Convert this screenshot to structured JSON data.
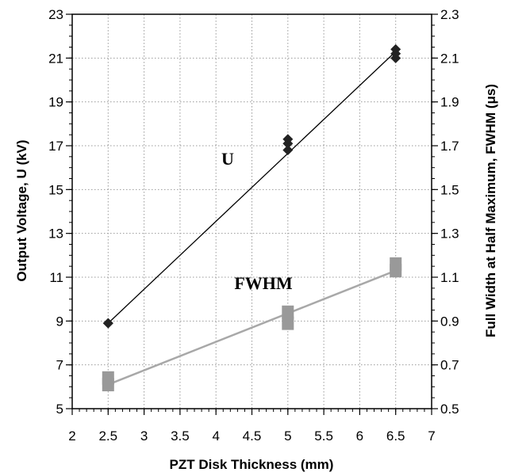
{
  "chart_data": {
    "type": "scatter",
    "xlabel": "PZT Disk Thickness (mm)",
    "ylabel": "Output Voltage, U (kV)",
    "y2label": "Full Width at Half Maximum, FWHM  (μs)",
    "xlim": [
      2,
      7
    ],
    "ylim": [
      5,
      23
    ],
    "y2lim": [
      0.5,
      2.3
    ],
    "x_ticks": [
      "2",
      "2.5",
      "3",
      "3.5",
      "4",
      "4.5",
      "5",
      "5.5",
      "6",
      "6.5",
      "7"
    ],
    "y_ticks": [
      "5",
      "7",
      "9",
      "11",
      "13",
      "15",
      "17",
      "19",
      "21",
      "23"
    ],
    "y2_ticks": [
      "0.5",
      "0.7",
      "0.9",
      "1.1",
      "1.3",
      "1.5",
      "1.7",
      "1.9",
      "2.1",
      "2.3"
    ],
    "grid": true,
    "series": [
      {
        "name": "U",
        "axis": "left",
        "marker": "diamond",
        "color": "#222222",
        "points": [
          [
            2.5,
            8.9
          ],
          [
            2.5,
            8.9
          ],
          [
            5.0,
            16.8
          ],
          [
            5.0,
            17.1
          ],
          [
            5.0,
            17.3
          ],
          [
            6.5,
            21.0
          ],
          [
            6.5,
            21.2
          ],
          [
            6.5,
            21.4
          ]
        ],
        "fit": [
          [
            2.5,
            8.9
          ],
          [
            6.5,
            21.3
          ]
        ]
      },
      {
        "name": "FWHM",
        "axis": "right",
        "marker": "square",
        "color": "#999999",
        "points": [
          [
            2.5,
            0.61
          ],
          [
            2.5,
            0.64
          ],
          [
            5.0,
            0.89
          ],
          [
            5.0,
            0.94
          ],
          [
            6.5,
            1.13
          ],
          [
            6.5,
            1.16
          ]
        ],
        "fit": [
          [
            2.5,
            0.61
          ],
          [
            6.5,
            1.13
          ]
        ]
      }
    ]
  }
}
